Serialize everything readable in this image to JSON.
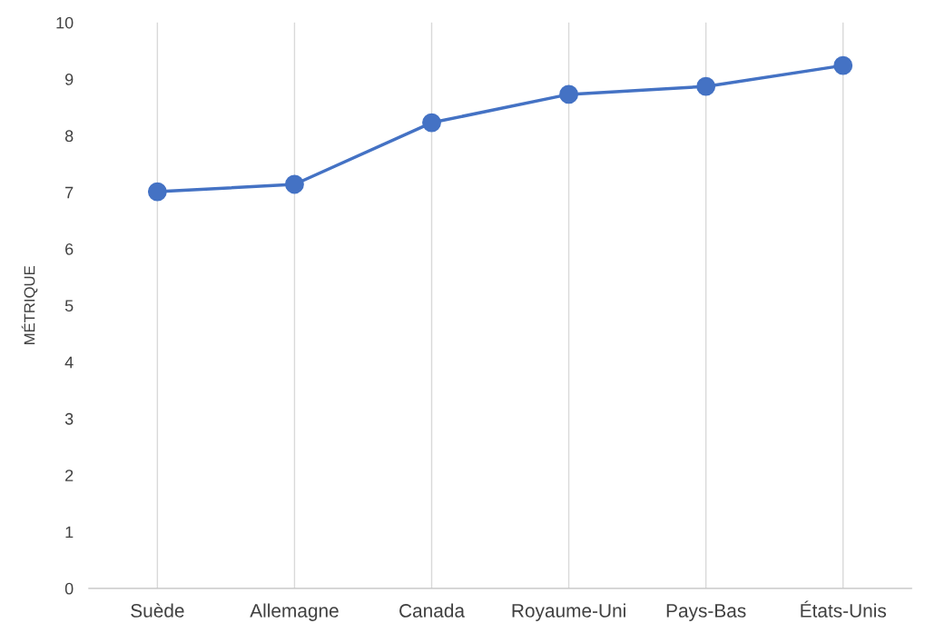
{
  "chart_data": {
    "type": "line",
    "ylabel": "MÉTRIQUE",
    "categories": [
      "Suède",
      "Allemagne",
      "Canada",
      "Royaume-Uni",
      "Pays-Bas",
      "États-Unis"
    ],
    "series": [
      {
        "color": "#4472c4",
        "values": [
          7.01,
          7.14,
          8.23,
          8.73,
          8.87,
          9.24
        ]
      }
    ],
    "ylim": [
      0,
      10
    ],
    "yticks": [
      0,
      1,
      2,
      3,
      4,
      5,
      6,
      7,
      8,
      9,
      10
    ],
    "grid": "x",
    "marker": "circle",
    "line_style": "solid"
  }
}
